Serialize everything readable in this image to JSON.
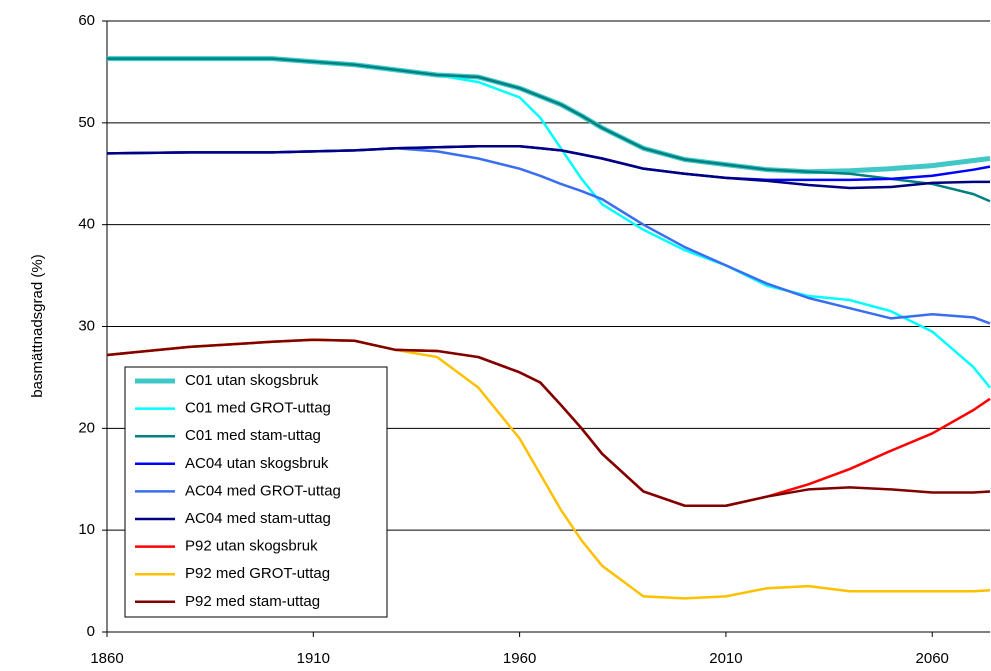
{
  "chart_data": {
    "type": "line",
    "ylabel": "basmättnadsgrad  (%)",
    "x": [
      1860,
      1880,
      1900,
      1910,
      1920,
      1930,
      1940,
      1950,
      1960,
      1965,
      1970,
      1975,
      1980,
      1990,
      2000,
      2010,
      2020,
      2030,
      2040,
      2050,
      2060,
      2070,
      2074
    ],
    "xlim": [
      1860,
      2074
    ],
    "xticks": [
      1860,
      1910,
      1960,
      2010,
      2060
    ],
    "ylim": [
      0,
      60
    ],
    "yticks": [
      0,
      10,
      20,
      30,
      40,
      50,
      60
    ],
    "grid": true,
    "legend": "lower-left",
    "series": [
      {
        "name": "C01 utan skogsbruk",
        "color": "#40C8C8",
        "width": 5,
        "values": [
          56.3,
          56.3,
          56.3,
          56,
          55.7,
          55.2,
          54.7,
          54.5,
          53.4,
          52.6,
          51.8,
          50.7,
          49.5,
          47.5,
          46.4,
          45.9,
          45.4,
          45.2,
          45.3,
          45.5,
          45.8,
          46.3,
          46.5
        ]
      },
      {
        "name": "C01 med GROT-uttag",
        "color": "#00FFFF",
        "width": 2.5,
        "values": [
          56.3,
          56.3,
          56.3,
          56,
          55.7,
          55.2,
          54.7,
          54,
          52.5,
          50.5,
          47.5,
          44.5,
          42,
          39.5,
          37.5,
          36,
          34,
          33,
          32.6,
          31.5,
          29.5,
          26,
          24
        ]
      },
      {
        "name": "C01 med stam-uttag",
        "color": "#008080",
        "width": 2.5,
        "values": [
          56.3,
          56.3,
          56.3,
          56,
          55.7,
          55.2,
          54.7,
          54.5,
          53.4,
          52.6,
          51.8,
          50.7,
          49.5,
          47.5,
          46.4,
          45.9,
          45.4,
          45.2,
          45,
          44.5,
          44,
          43,
          42.3
        ]
      },
      {
        "name": "AC04 utan skogsbruk",
        "color": "#0000FF",
        "width": 2.5,
        "values": [
          47,
          47.1,
          47.1,
          47.2,
          47.3,
          47.5,
          47.6,
          47.7,
          47.7,
          47.5,
          47.3,
          46.9,
          46.5,
          45.5,
          45,
          44.6,
          44.4,
          44.4,
          44.4,
          44.5,
          44.8,
          45.4,
          45.7
        ]
      },
      {
        "name": "AC04 med GROT-uttag",
        "color": "#3A6EF0",
        "width": 2.5,
        "values": [
          47,
          47.1,
          47.1,
          47.2,
          47.3,
          47.5,
          47.2,
          46.5,
          45.5,
          44.8,
          44,
          43.3,
          42.5,
          40,
          37.8,
          36,
          34.2,
          32.8,
          31.8,
          30.8,
          31.2,
          30.9,
          30.3
        ]
      },
      {
        "name": "AC04 med stam-uttag",
        "color": "#000080",
        "width": 2.5,
        "values": [
          47,
          47.1,
          47.1,
          47.2,
          47.3,
          47.5,
          47.6,
          47.7,
          47.7,
          47.5,
          47.3,
          46.9,
          46.5,
          45.5,
          45,
          44.6,
          44.3,
          43.9,
          43.6,
          43.7,
          44.1,
          44.2,
          44.2
        ]
      },
      {
        "name": "P92 utan skogsbruk",
        "color": "#FF0000",
        "width": 2.5,
        "values": [
          27.2,
          28,
          28.5,
          28.7,
          28.6,
          27.7,
          27.6,
          27,
          25.5,
          24.5,
          22.3,
          20,
          17.5,
          13.8,
          12.4,
          12.4,
          13.3,
          14.5,
          16,
          17.8,
          19.5,
          21.8,
          22.9
        ]
      },
      {
        "name": "P92 med GROT-uttag",
        "color": "#FFC000",
        "width": 2.5,
        "values": [
          27.2,
          28,
          28.5,
          28.7,
          28.6,
          27.7,
          27,
          24,
          19,
          15.5,
          12,
          9,
          6.5,
          3.5,
          3.3,
          3.5,
          4.3,
          4.5,
          4,
          4,
          4,
          4,
          4.1
        ]
      },
      {
        "name": "P92 med stam-uttag",
        "color": "#800000",
        "width": 2.5,
        "values": [
          27.2,
          28,
          28.5,
          28.7,
          28.6,
          27.7,
          27.6,
          27,
          25.5,
          24.5,
          22.3,
          20,
          17.5,
          13.8,
          12.4,
          12.4,
          13.3,
          14,
          14.2,
          14,
          13.7,
          13.7,
          13.8
        ]
      }
    ]
  }
}
